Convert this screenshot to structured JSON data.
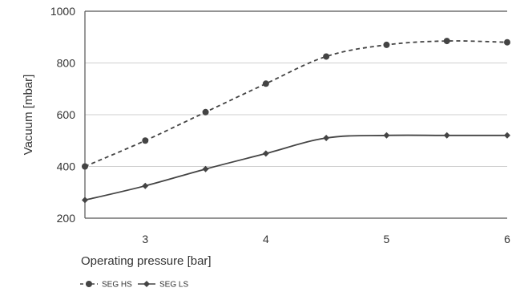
{
  "chart_data": {
    "type": "line",
    "title": "",
    "xlabel": "Operating pressure [bar]",
    "ylabel": "Vacuum [mbar]",
    "xlim": [
      2.5,
      6
    ],
    "ylim": [
      200,
      1000
    ],
    "xticks": [
      3,
      4,
      5,
      6
    ],
    "yticks": [
      200,
      400,
      600,
      800,
      1000
    ],
    "grid": "horizontal",
    "legend_position": "bottom-left",
    "series": [
      {
        "name": "SEG HS",
        "marker": "circle",
        "line_style": "dashed",
        "color": "#444444",
        "x": [
          2.5,
          3,
          3.5,
          4,
          4.5,
          5,
          5.5,
          6
        ],
        "values": [
          400,
          500,
          610,
          720,
          825,
          870,
          885,
          880
        ]
      },
      {
        "name": "SEG LS",
        "marker": "diamond",
        "line_style": "solid",
        "color": "#444444",
        "x": [
          2.5,
          3,
          3.5,
          4,
          4.5,
          5,
          5.5,
          6
        ],
        "values": [
          270,
          325,
          390,
          450,
          510,
          520,
          520,
          520
        ]
      }
    ]
  }
}
